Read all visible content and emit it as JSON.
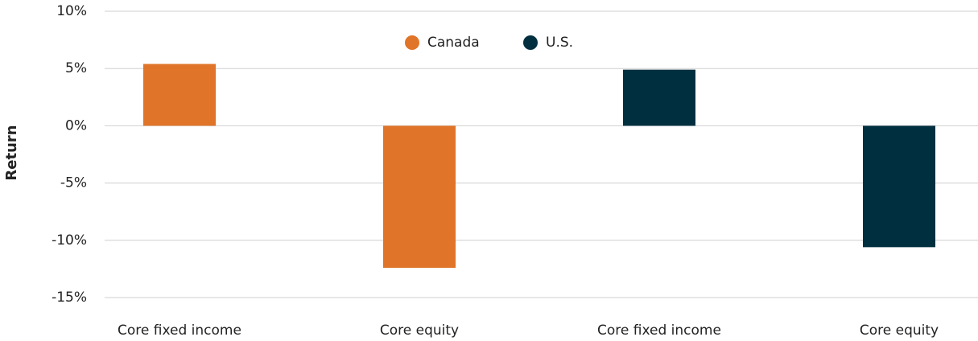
{
  "chart_data": {
    "type": "bar",
    "y_label": "Return",
    "categories": [
      "Core fixed income",
      "Core equity",
      "Core fixed income",
      "Core equity"
    ],
    "series": [
      {
        "name": "Canada",
        "color": "#e07428",
        "values": [
          5.4,
          -12.4,
          null,
          null
        ]
      },
      {
        "name": "U.S.",
        "color": "#002f3f",
        "values": [
          null,
          null,
          4.9,
          -10.6
        ]
      }
    ],
    "ylim": [
      -15,
      10
    ],
    "yticks": [
      {
        "value": -15,
        "label": "-15%"
      },
      {
        "value": -10,
        "label": "-10%"
      },
      {
        "value": -5,
        "label": "-5%"
      },
      {
        "value": 0,
        "label": "0%"
      },
      {
        "value": 5,
        "label": "5%"
      },
      {
        "value": 10,
        "label": "10%"
      }
    ],
    "grid": true,
    "legend": "top"
  }
}
